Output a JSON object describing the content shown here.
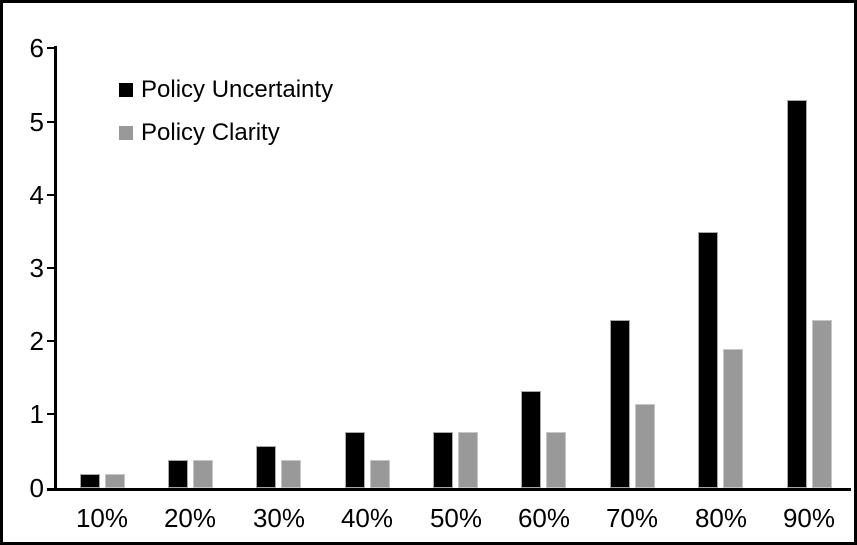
{
  "chart_data": {
    "type": "bar",
    "title": "",
    "categories": [
      "10%",
      "20%",
      "30%",
      "40%",
      "50%",
      "60%",
      "70%",
      "80%",
      "90%"
    ],
    "series": [
      {
        "name": "Policy Uncertainty",
        "color": "#000000",
        "values": [
          0.19,
          0.38,
          0.57,
          0.77,
          0.77,
          1.33,
          2.3,
          3.5,
          5.3
        ]
      },
      {
        "name": "Policy Clarity",
        "color": "#999999",
        "values": [
          0.19,
          0.38,
          0.38,
          0.38,
          0.77,
          0.77,
          1.15,
          1.9,
          2.3
        ]
      }
    ],
    "xlabel": "",
    "ylabel": "",
    "ylim": [
      0,
      6
    ],
    "yticks": [
      0,
      1,
      2,
      3,
      4,
      5,
      6
    ],
    "grid": false,
    "legend_position": "inside-top-left",
    "axis_color": "#000000",
    "background_color": "#ffffff"
  }
}
